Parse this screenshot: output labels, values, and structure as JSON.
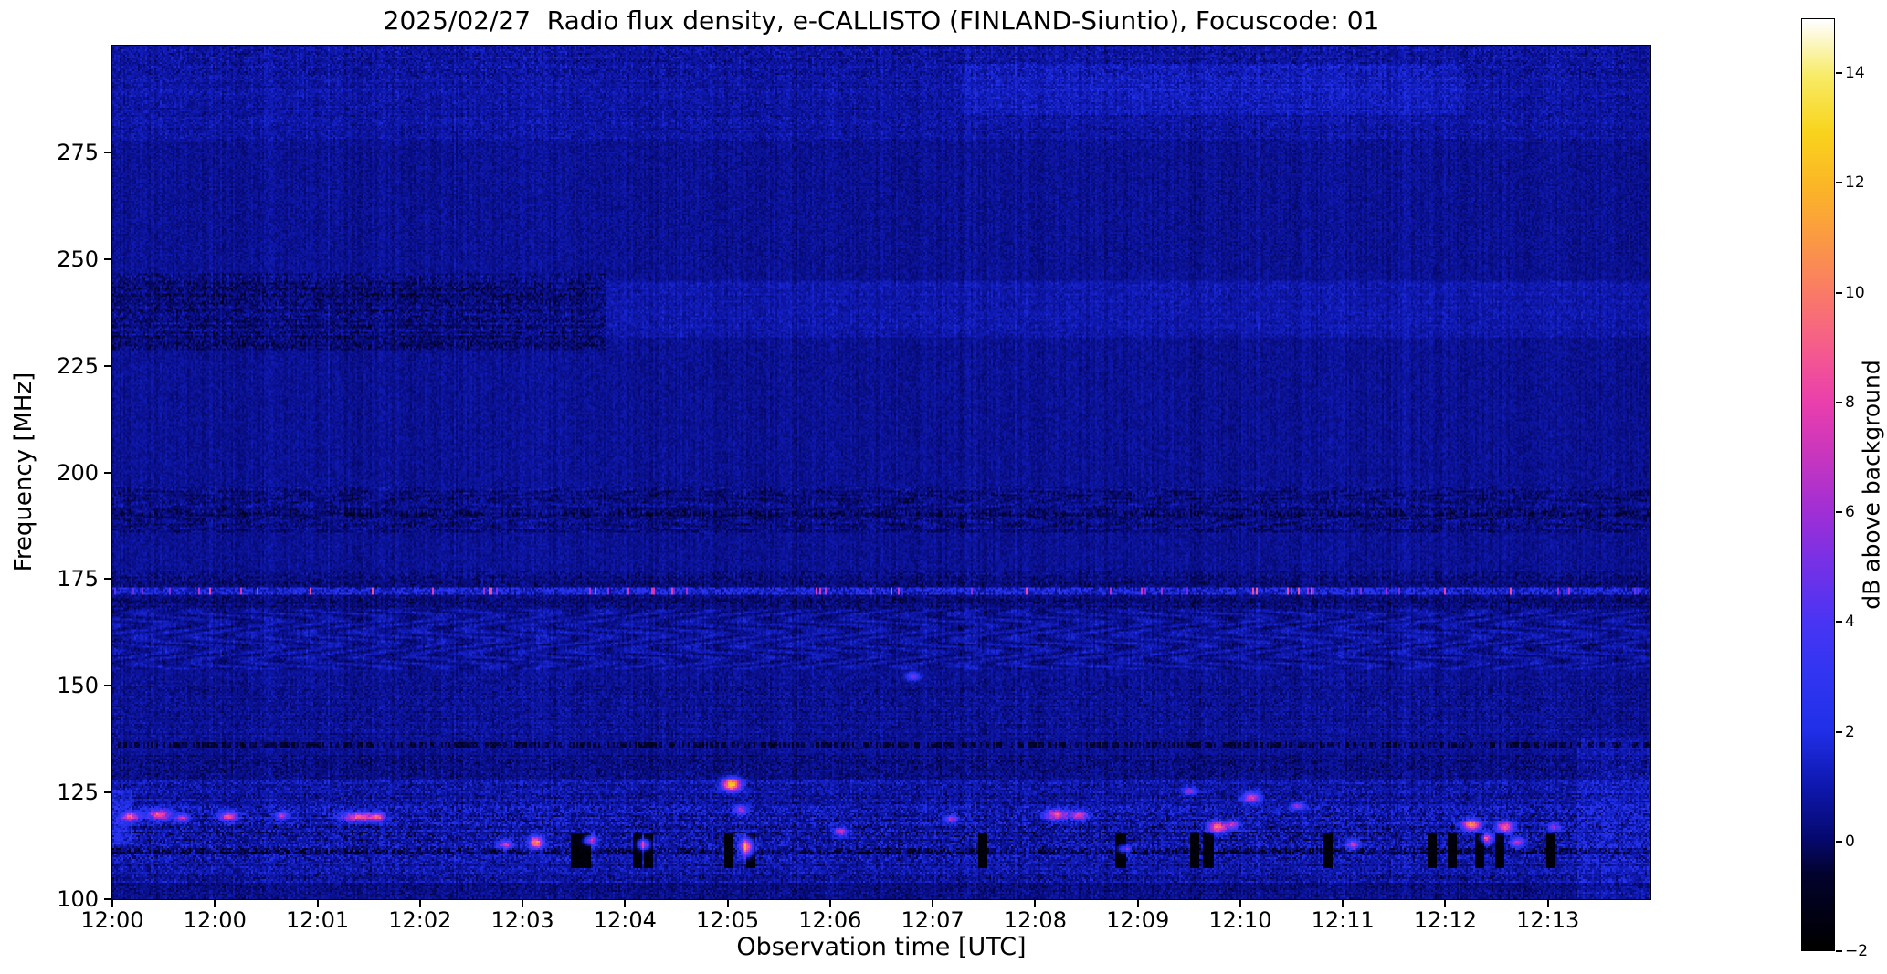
{
  "chart_data": {
    "type": "heatmap",
    "subtype": "radio-spectrogram",
    "title": "2025/02/27  Radio flux density, e-CALLISTO (FINLAND-Siuntio), Focuscode: 01",
    "xlabel": "Observation time [UTC]",
    "ylabel": "Frequency [MHz]",
    "x_ticks": [
      "12:00",
      "12:00",
      "12:01",
      "12:02",
      "12:03",
      "12:04",
      "12:05",
      "12:06",
      "12:07",
      "12:08",
      "12:09",
      "12:10",
      "12:11",
      "12:12",
      "12:13"
    ],
    "y_ticks": [
      {
        "v": 275,
        "label": "275"
      },
      {
        "v": 250,
        "label": "250"
      },
      {
        "v": 225,
        "label": "225"
      },
      {
        "v": 200,
        "label": "200"
      },
      {
        "v": 175,
        "label": "175"
      },
      {
        "v": 150,
        "label": "150"
      },
      {
        "v": 125,
        "label": "125"
      },
      {
        "v": 100,
        "label": "100"
      }
    ],
    "freq_range": [
      100,
      300
    ],
    "time_span_minutes": 15,
    "grid": false,
    "colorbar": {
      "label": "dB above background",
      "position": "right",
      "vmin": -2,
      "vmax": 15,
      "ticks": [
        {
          "v": 14,
          "label": "14"
        },
        {
          "v": 12,
          "label": "12"
        },
        {
          "v": 10,
          "label": "10"
        },
        {
          "v": 8,
          "label": "8"
        },
        {
          "v": 6,
          "label": "6"
        },
        {
          "v": 4,
          "label": "4"
        },
        {
          "v": 2,
          "label": "2"
        },
        {
          "v": 0,
          "label": "0"
        },
        {
          "v": -2,
          "label": "−2"
        }
      ],
      "colormap": "gnuplot2-like",
      "stops": [
        [
          0.0,
          "#000000"
        ],
        [
          0.08,
          "#03032e"
        ],
        [
          0.118,
          "#06096e"
        ],
        [
          0.18,
          "#101ab4"
        ],
        [
          0.235,
          "#2130e8"
        ],
        [
          0.3,
          "#3336f2"
        ],
        [
          0.353,
          "#4a35f4"
        ],
        [
          0.42,
          "#7a31e6"
        ],
        [
          0.47,
          "#a02fd6"
        ],
        [
          0.53,
          "#c836c0"
        ],
        [
          0.588,
          "#ea3fae"
        ],
        [
          0.65,
          "#f65e8c"
        ],
        [
          0.706,
          "#fa7b68"
        ],
        [
          0.765,
          "#fb9a44"
        ],
        [
          0.824,
          "#fcb827"
        ],
        [
          0.88,
          "#f9d41d"
        ],
        [
          0.941,
          "#f8ec66"
        ],
        [
          1.0,
          "#ffffff"
        ]
      ]
    },
    "render": {
      "seed": 987654321,
      "base_value": 0.55,
      "pixel_noise": 0.85,
      "stripe_noise": 0.5,
      "bands": [
        {
          "f": [
            293,
            300
          ],
          "dv": 0.35,
          "noise": 1.0
        },
        {
          "f": [
            278,
            293
          ],
          "dv": 0.22,
          "noise": 0.7
        },
        {
          "f": [
            284,
            296
          ],
          "t": [
            0.55,
            0.88
          ],
          "dv": 0.4,
          "noise": 0.35
        },
        {
          "f": [
            229,
            247
          ],
          "t": [
            0.0,
            0.32
          ],
          "dv": -0.35,
          "noise": 1.3
        },
        {
          "f": [
            232,
            245
          ],
          "t": [
            0.32,
            1.0
          ],
          "dv": 0.4,
          "noise": 0.5
        },
        {
          "f": [
            186,
            197
          ],
          "dv": -0.25,
          "noise": 1.0,
          "wave": 0.25
        },
        {
          "f": [
            168,
            177
          ],
          "dv": -0.3,
          "noise": 0.9
        },
        {
          "f": [
            154,
            168
          ],
          "dv": 0.15,
          "noise": 0.8,
          "wave": 0.5
        },
        {
          "f": [
            138,
            153
          ],
          "dv": 0.0,
          "noise": 0.7
        },
        {
          "f": [
            128,
            134
          ],
          "dv": -0.25,
          "noise": 0.9
        },
        {
          "f": [
            104,
            128
          ],
          "dv": 0.25,
          "noise": 1.4
        },
        {
          "f": [
            109,
            122
          ],
          "dv": 0.05,
          "noise": 1.5
        },
        {
          "f": [
            100,
            104
          ],
          "dv": -0.25,
          "noise": 0.8
        },
        {
          "f": [
            113,
            126
          ],
          "t": [
            0.0,
            0.012
          ],
          "dv": 1.1,
          "noise": 0.8
        },
        {
          "f": [
            100,
            138
          ],
          "t": [
            0.952,
            1.0
          ],
          "dv": 0.5,
          "noise": 0.7
        }
      ],
      "h_lines": [
        {
          "f": 172.3,
          "hw": 0.9,
          "mode": "carrier",
          "base": 1.6,
          "noise": 1.4,
          "sparkle_p": 0.055,
          "sparkle_v": [
            4,
            9
          ]
        },
        {
          "f": 190.6,
          "hw": 0.45,
          "mode": "duty",
          "duty": 0.5,
          "dv": -0.55,
          "noise": 0.7
        },
        {
          "f": 136.3,
          "hw": 0.55,
          "mode": "duty",
          "duty": 0.6,
          "dv": -1.1,
          "noise": 0.8
        },
        {
          "f": 111.6,
          "hw": 0.5,
          "mode": "duty",
          "duty": 0.65,
          "dv": -0.8,
          "noise": 0.9
        }
      ],
      "dropouts": {
        "f": [
          107.5,
          115.5
        ],
        "hw": 0.0024,
        "xs": [
          0.3,
          0.307,
          0.341,
          0.348,
          0.4,
          0.414,
          0.565,
          0.655,
          0.703,
          0.712,
          0.79,
          0.858,
          0.87,
          0.888,
          0.901,
          0.935
        ]
      },
      "bursts": [
        {
          "x": 0.012,
          "f": 119.6,
          "v": 7,
          "sx": 0.004,
          "sf": 0.7
        },
        {
          "x": 0.03,
          "f": 120.0,
          "v": 8,
          "sx": 0.005,
          "sf": 0.8
        },
        {
          "x": 0.045,
          "f": 119.3,
          "v": 6,
          "sx": 0.003,
          "sf": 0.6
        },
        {
          "x": 0.075,
          "f": 119.6,
          "v": 7.5,
          "sx": 0.004,
          "sf": 0.7
        },
        {
          "x": 0.11,
          "f": 119.8,
          "v": 6,
          "sx": 0.003,
          "sf": 0.6
        },
        {
          "x": 0.16,
          "f": 119.5,
          "v": 8,
          "sx": 0.008,
          "sf": 0.7
        },
        {
          "x": 0.172,
          "f": 119.5,
          "v": 6,
          "sx": 0.003,
          "sf": 0.6
        },
        {
          "x": 0.255,
          "f": 113.0,
          "v": 6,
          "sx": 0.003,
          "sf": 0.8
        },
        {
          "x": 0.275,
          "f": 113.5,
          "v": 10,
          "sx": 0.003,
          "sf": 1.0
        },
        {
          "x": 0.31,
          "f": 114.0,
          "v": 7,
          "sx": 0.003,
          "sf": 0.8
        },
        {
          "x": 0.345,
          "f": 113.0,
          "v": 8,
          "sx": 0.003,
          "sf": 0.9
        },
        {
          "x": 0.402,
          "f": 127.0,
          "v": 12,
          "sx": 0.004,
          "sf": 1.0
        },
        {
          "x": 0.408,
          "f": 121.0,
          "v": 5,
          "sx": 0.003,
          "sf": 0.8
        },
        {
          "x": 0.412,
          "f": 112.5,
          "v": 11,
          "sx": 0.003,
          "sf": 1.5
        },
        {
          "x": 0.473,
          "f": 116.0,
          "v": 6,
          "sx": 0.003,
          "sf": 0.7
        },
        {
          "x": 0.52,
          "f": 152.5,
          "v": 5,
          "sx": 0.003,
          "sf": 0.6
        },
        {
          "x": 0.545,
          "f": 119.0,
          "v": 5,
          "sx": 0.003,
          "sf": 0.6
        },
        {
          "x": 0.613,
          "f": 120.0,
          "v": 8,
          "sx": 0.005,
          "sf": 0.8
        },
        {
          "x": 0.628,
          "f": 119.8,
          "v": 7,
          "sx": 0.004,
          "sf": 0.7
        },
        {
          "x": 0.657,
          "f": 112.0,
          "v": 5,
          "sx": 0.003,
          "sf": 0.7
        },
        {
          "x": 0.7,
          "f": 125.5,
          "v": 5,
          "sx": 0.003,
          "sf": 0.6
        },
        {
          "x": 0.718,
          "f": 117.0,
          "v": 9,
          "sx": 0.004,
          "sf": 0.9
        },
        {
          "x": 0.728,
          "f": 117.5,
          "v": 6,
          "sx": 0.003,
          "sf": 0.7
        },
        {
          "x": 0.74,
          "f": 124.0,
          "v": 7,
          "sx": 0.004,
          "sf": 0.8
        },
        {
          "x": 0.77,
          "f": 122.0,
          "v": 5,
          "sx": 0.003,
          "sf": 0.6
        },
        {
          "x": 0.806,
          "f": 113.0,
          "v": 6,
          "sx": 0.003,
          "sf": 0.8
        },
        {
          "x": 0.883,
          "f": 117.5,
          "v": 10,
          "sx": 0.004,
          "sf": 0.9
        },
        {
          "x": 0.893,
          "f": 114.5,
          "v": 7,
          "sx": 0.003,
          "sf": 0.8
        },
        {
          "x": 0.905,
          "f": 117.0,
          "v": 8,
          "sx": 0.004,
          "sf": 0.9
        },
        {
          "x": 0.913,
          "f": 113.5,
          "v": 6,
          "sx": 0.003,
          "sf": 0.8
        },
        {
          "x": 0.937,
          "f": 117.0,
          "v": 5,
          "sx": 0.003,
          "sf": 0.6
        }
      ]
    }
  }
}
